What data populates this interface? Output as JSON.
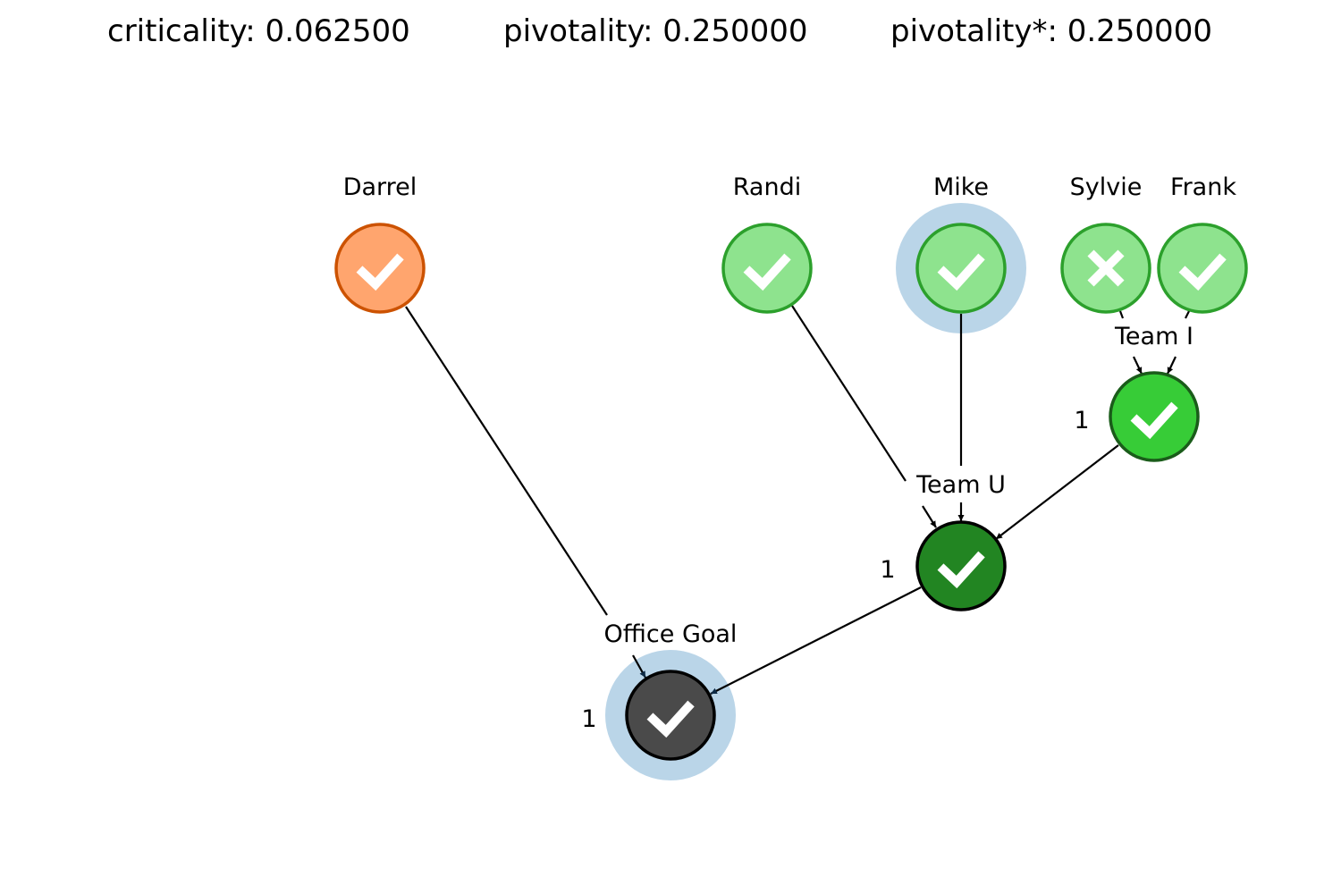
{
  "metrics": {
    "criticality": "criticality: 0.062500",
    "pivotality": "pivotality: 0.250000",
    "pivotality_star": "pivotality*: 0.250000"
  },
  "colors": {
    "orange_fill": "#ffa56e",
    "orange_stroke": "#cc5200",
    "light_green_fill": "#8ee38e",
    "light_green_stroke": "#2ca02c",
    "team_i_fill": "#37cc37",
    "team_i_stroke": "#1a5c1a",
    "team_u_fill": "#228522",
    "team_u_stroke": "#000000",
    "goal_fill": "#4a4a4a",
    "goal_stroke": "#000000",
    "halo": "#bad5e8"
  },
  "nodes": {
    "darrel": {
      "label": "Darrel",
      "status": "check",
      "icon": "check-icon"
    },
    "randi": {
      "label": "Randi",
      "status": "check",
      "icon": "check-icon"
    },
    "mike": {
      "label": "Mike",
      "status": "check",
      "icon": "check-icon",
      "highlighted": true
    },
    "sylvie": {
      "label": "Sylvie",
      "status": "cross",
      "icon": "cross-icon"
    },
    "frank": {
      "label": "Frank",
      "status": "check",
      "icon": "check-icon"
    },
    "team_i": {
      "label": "Team I",
      "threshold": "1",
      "status": "check",
      "icon": "check-icon"
    },
    "team_u": {
      "label": "Team U",
      "threshold": "1",
      "status": "check",
      "icon": "check-icon"
    },
    "office_goal": {
      "label": "Office Goal",
      "threshold": "1",
      "status": "check",
      "icon": "check-icon",
      "highlighted": true
    }
  }
}
